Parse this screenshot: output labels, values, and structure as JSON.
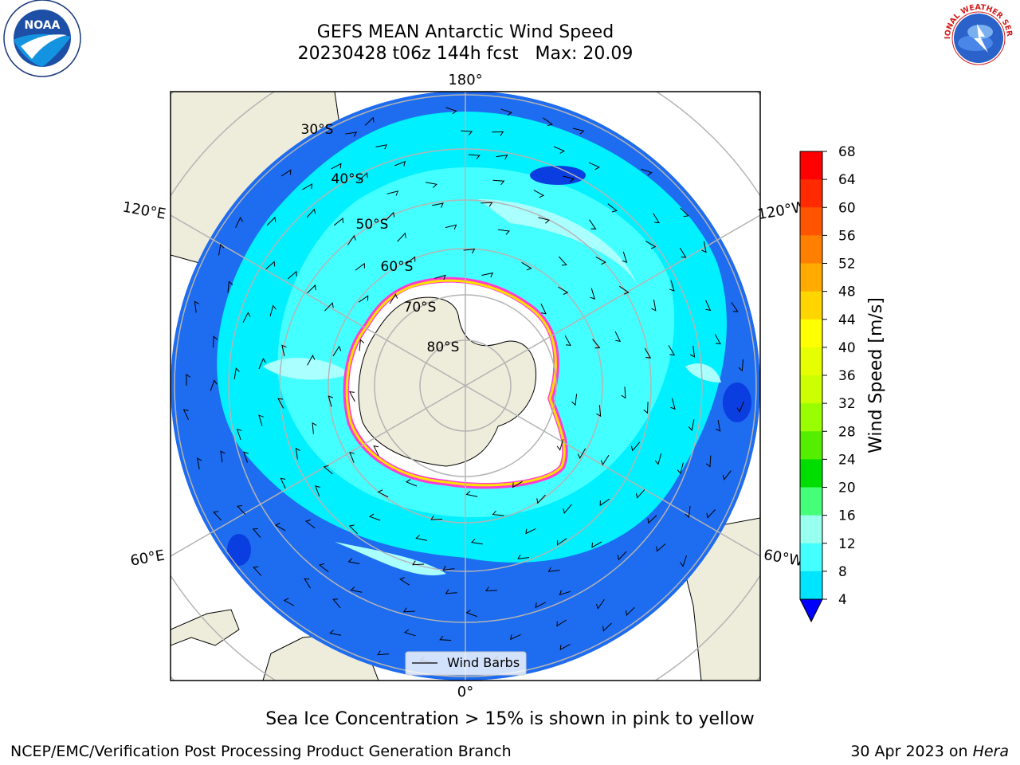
{
  "title": {
    "line1": "GEFS MEAN Antarctic Wind Speed",
    "line2": "20230428 t06z 144h fcst   Max: 20.09"
  },
  "logos": {
    "noaa_text": "NOAA",
    "nws_text": "NATIONAL WEATHER SERVICE"
  },
  "map": {
    "meridian_labels": {
      "top": "180°",
      "bottom": "0°",
      "upper_left": "120°E",
      "upper_right": "120°W",
      "lower_left": "60°E",
      "lower_right": "60°W"
    },
    "latitude_labels": [
      "30°S",
      "40°S",
      "50°S",
      "60°S",
      "70°S",
      "80°S"
    ],
    "legend_label": "Wind Barbs"
  },
  "colorbar": {
    "label": "Wind Speed [m/s]",
    "ticks": [
      "68",
      "64",
      "60",
      "56",
      "52",
      "48",
      "44",
      "40",
      "36",
      "32",
      "28",
      "24",
      "20",
      "16",
      "12",
      "8",
      "4"
    ],
    "colors_top_to_bottom": [
      "#ff0000",
      "#ff2a00",
      "#ff5500",
      "#ff8000",
      "#ffab00",
      "#ffd500",
      "#ffff00",
      "#e6ff00",
      "#ccff00",
      "#99ff00",
      "#55ee00",
      "#00dd00",
      "#44ff77",
      "#99ffee",
      "#44ffff",
      "#00e5ff",
      "#0088ff"
    ],
    "extend_color": "#0000ff"
  },
  "note": "Sea Ice Concentration > 15% is shown in pink to yellow",
  "footer": {
    "left": "NCEP/EMC/Verification Post Processing Product Generation Branch",
    "right_date": "30 Apr 2023 on",
    "right_host": "Hera"
  },
  "colors": {
    "land": "#eeecda",
    "ocean_low": "#1e6cf0",
    "ocean_mid": "#00f0ff",
    "ocean_high": "#aaffff",
    "antarctica_ice": "#ffffff",
    "sea_ice_edge": "#ff3cd2",
    "grid": "#b4b4b4"
  }
}
